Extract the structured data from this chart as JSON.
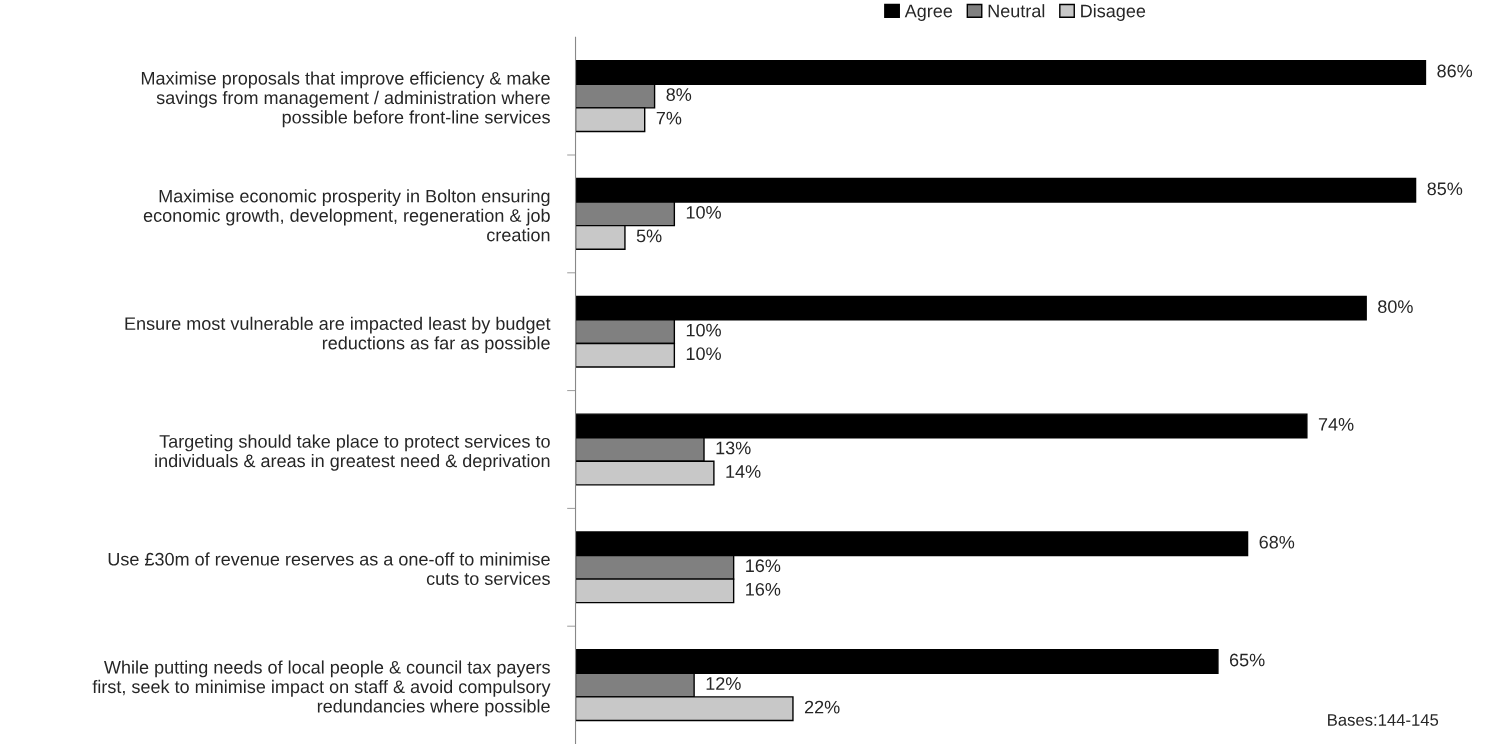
{
  "chart_data": {
    "type": "bar",
    "orientation": "horizontal",
    "categories": [
      "Maximise proposals that improve efficiency & make\nsavings from management / administration where\npossible before front-line services",
      "Maximise economic prosperity in Bolton ensuring\neconomic growth, development, regeneration & job\ncreation",
      "Ensure most vulnerable are impacted least by budget\nreductions as far as possible",
      "Targeting should take place to protect services to\nindividuals & areas in greatest need & deprivation",
      "Use £30m of revenue reserves as a one-off to minimise\ncuts to services",
      "While putting needs of local people & council tax payers\nfirst, seek to minimise impact on staff & avoid compulsory\nredundancies where possible"
    ],
    "series": [
      {
        "name": "Agree",
        "color": "#000000",
        "values": [
          86,
          85,
          80,
          74,
          68,
          65
        ],
        "value_labels": [
          "86%",
          "85%",
          "80%",
          "74%",
          "68%",
          "65%"
        ]
      },
      {
        "name": "Neutral",
        "color": "#808080",
        "values": [
          8,
          10,
          10,
          13,
          16,
          12
        ],
        "value_labels": [
          "8%",
          "10%",
          "10%",
          "13%",
          "16%",
          "12%"
        ]
      },
      {
        "name": "Disagee",
        "color": "#c8c8c8",
        "values": [
          7,
          5,
          10,
          14,
          16,
          22
        ],
        "value_labels": [
          "7%",
          "5%",
          "10%",
          "14%",
          "16%",
          "22%"
        ]
      }
    ],
    "legend": "top",
    "grid": false,
    "annotations": [
      "Bases:144-145"
    ]
  }
}
